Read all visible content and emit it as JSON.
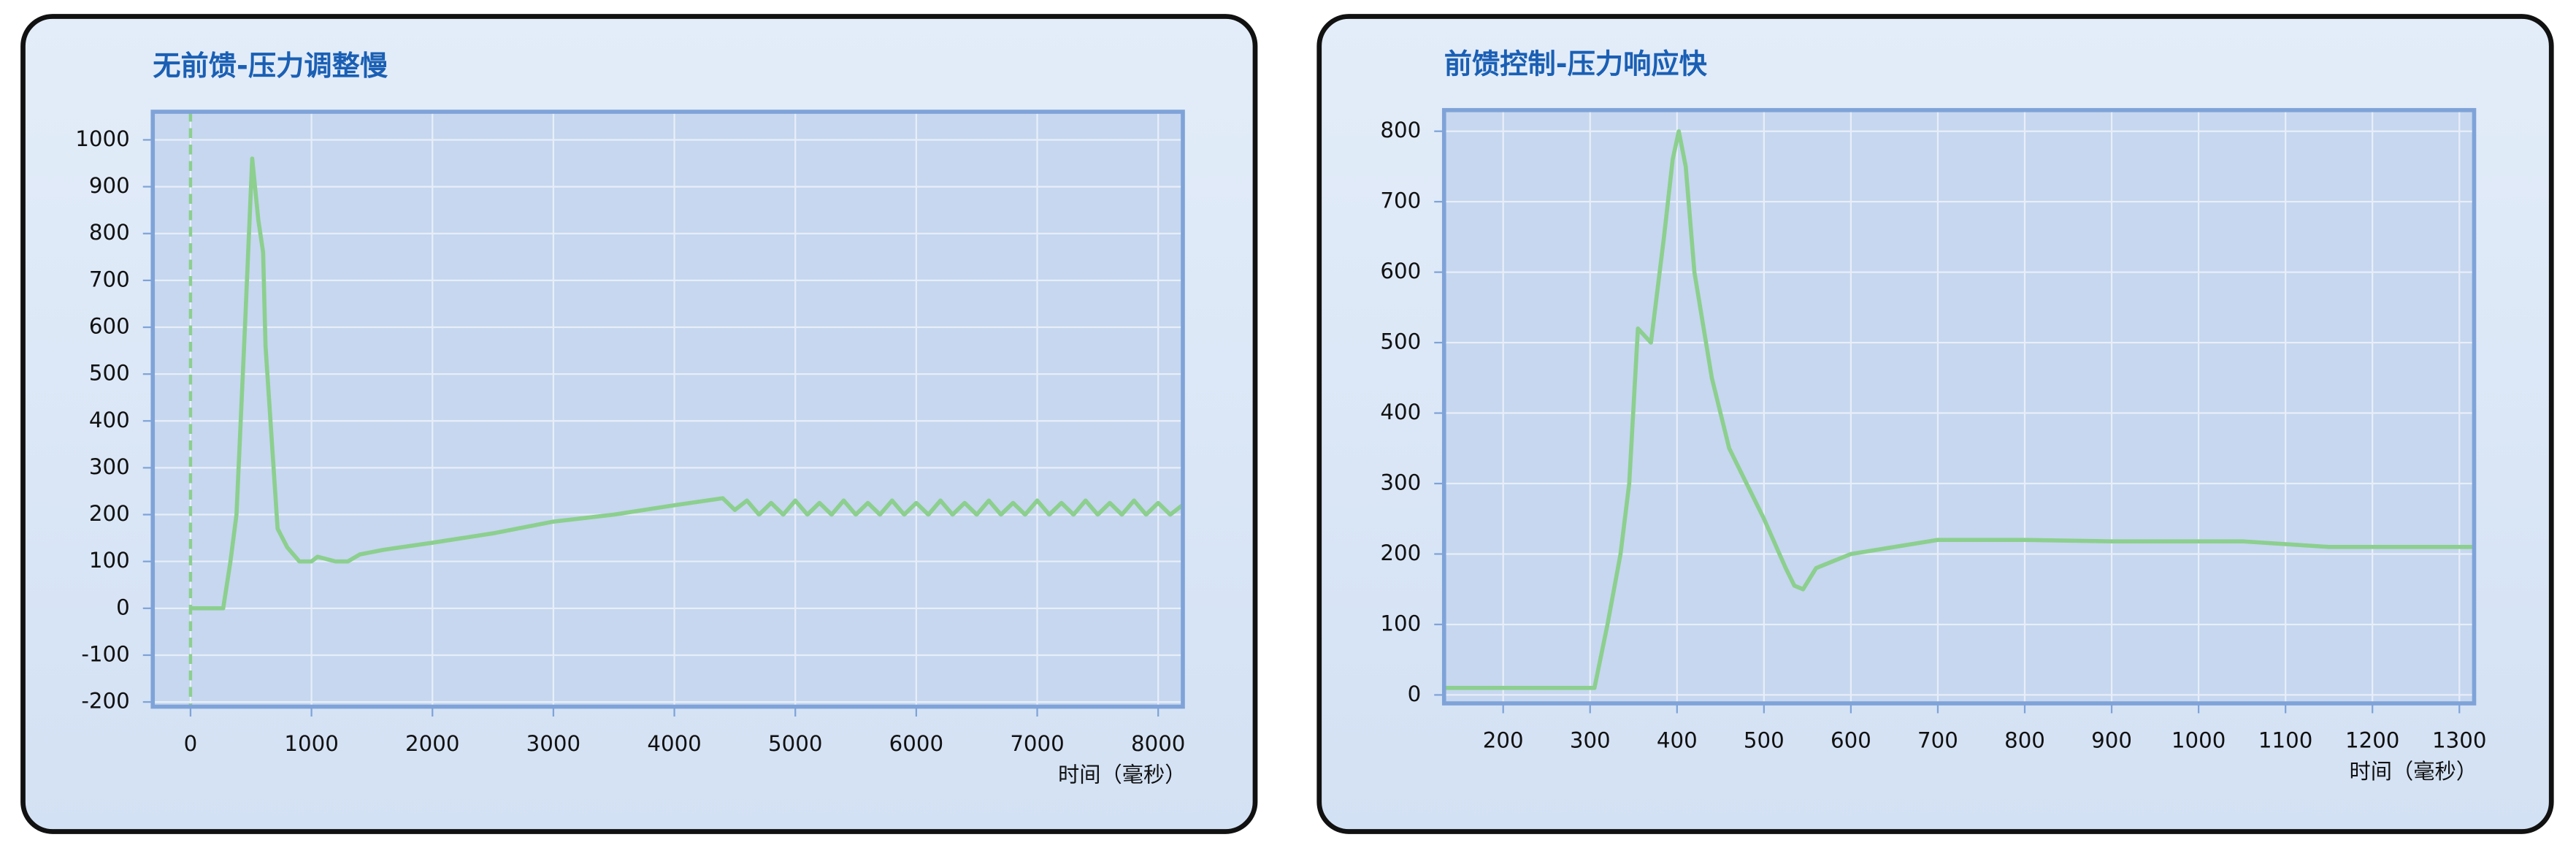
{
  "chart_data": [
    {
      "type": "line",
      "title": "无前馈-压力调整慢",
      "x_label": "时间（毫秒）",
      "x": [
        0,
        270,
        330,
        380,
        450,
        510,
        560,
        600,
        620,
        720,
        800,
        900,
        1000,
        1050,
        1200,
        1300,
        1400,
        1600,
        2000,
        2500,
        3000,
        3500,
        4000,
        4400,
        4500,
        4600,
        4700,
        4800,
        4900,
        5000,
        5100,
        5200,
        5300,
        5400,
        5500,
        5600,
        5700,
        5800,
        5900,
        6000,
        6100,
        6200,
        6300,
        6400,
        6500,
        6600,
        6700,
        6800,
        6900,
        7000,
        7100,
        7200,
        7300,
        7400,
        7500,
        7600,
        7700,
        7800,
        7900,
        8000,
        8100,
        8200
      ],
      "values": [
        0,
        0,
        100,
        200,
        600,
        960,
        830,
        760,
        560,
        170,
        130,
        100,
        100,
        110,
        100,
        100,
        115,
        125,
        140,
        160,
        185,
        200,
        220,
        235,
        210,
        230,
        200,
        225,
        200,
        230,
        200,
        225,
        200,
        230,
        200,
        225,
        200,
        230,
        200,
        225,
        200,
        230,
        200,
        225,
        200,
        230,
        200,
        225,
        200,
        230,
        200,
        225,
        200,
        230,
        200,
        225,
        200,
        230,
        200,
        225,
        200,
        220
      ],
      "color": "#8ccf8e",
      "vline": {
        "x": 0,
        "color": "#8ccf8e"
      },
      "xlim": [
        -312,
        8204
      ],
      "ylim": [
        -210,
        1060
      ],
      "xticks": [
        0,
        1000,
        2000,
        3000,
        4000,
        5000,
        6000,
        7000,
        8000
      ],
      "yticks": [
        -200,
        -100,
        0,
        100,
        200,
        300,
        400,
        500,
        600,
        700,
        800,
        900,
        1000
      ],
      "grid": true
    },
    {
      "type": "line",
      "title": "前馈控制-压力响应快",
      "x_label": "时间（毫秒）",
      "x": [
        132,
        305,
        320,
        335,
        345,
        355,
        370,
        385,
        395,
        402,
        410,
        420,
        440,
        460,
        500,
        525,
        535,
        545,
        560,
        600,
        700,
        800,
        900,
        1050,
        1150,
        1317
      ],
      "values": [
        10,
        10,
        100,
        200,
        300,
        520,
        500,
        650,
        760,
        800,
        750,
        600,
        450,
        350,
        250,
        180,
        155,
        150,
        180,
        200,
        220,
        220,
        218,
        218,
        210,
        210
      ],
      "color": "#8ccf8e",
      "xlim": [
        132,
        1317
      ],
      "ylim": [
        -12,
        830
      ],
      "xticks": [
        200,
        300,
        400,
        500,
        600,
        700,
        800,
        900,
        1000,
        1100,
        1200,
        1300
      ],
      "yticks": [
        0,
        100,
        200,
        300,
        400,
        500,
        600,
        700,
        800
      ],
      "grid": true
    }
  ]
}
